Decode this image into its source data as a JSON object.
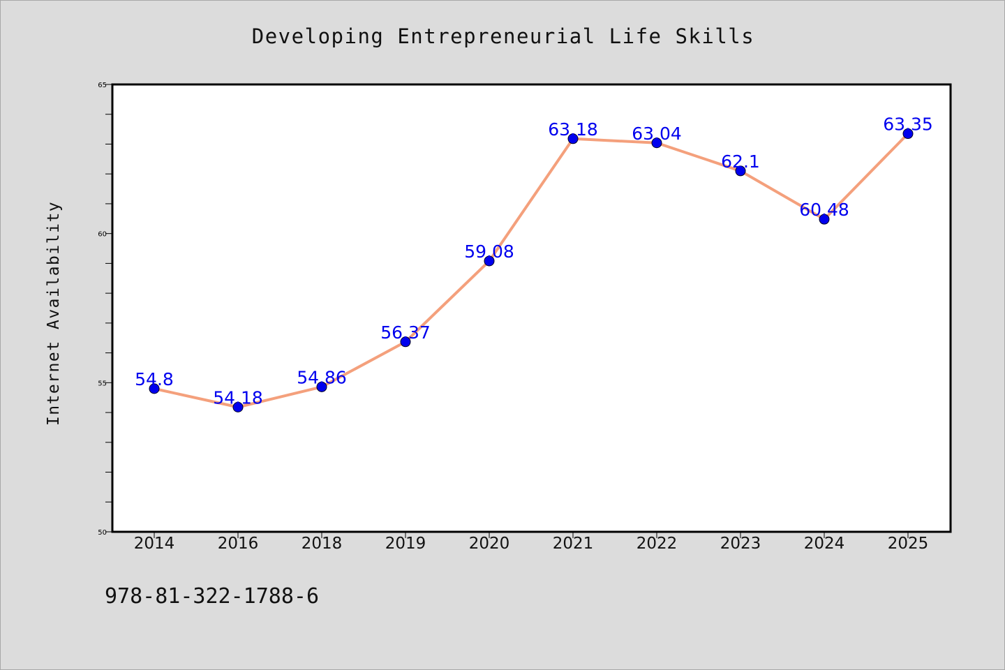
{
  "chart_data": {
    "type": "line",
    "title": "Developing Entrepreneurial Life Skills",
    "xlabel": "",
    "ylabel": "Internet Availability",
    "categories": [
      "2014",
      "2016",
      "2018",
      "2019",
      "2020",
      "2021",
      "2022",
      "2023",
      "2024",
      "2025"
    ],
    "series": [
      {
        "values": [
          54.8,
          54.18,
          54.86,
          56.37,
          59.08,
          63.18,
          63.04,
          62.1,
          60.48,
          63.35
        ],
        "data_labels": [
          "54.8",
          "54.18",
          "54.86",
          "56.37",
          "59.08",
          "63.18",
          "63.04",
          "62.1",
          "60.48",
          "63.35"
        ]
      }
    ],
    "ylim": [
      50,
      65
    ],
    "yticks": [
      "50",
      "55",
      "60",
      "65"
    ],
    "grid": false,
    "legend": "none",
    "colors": {
      "line": "#f4a07c",
      "marker": "#0000ee",
      "data_label": "#0000ee",
      "plot_bg": "#ffffff",
      "page_bg": "#dcdcdc"
    }
  },
  "footer": {
    "isbn": "978-81-322-1788-6"
  }
}
